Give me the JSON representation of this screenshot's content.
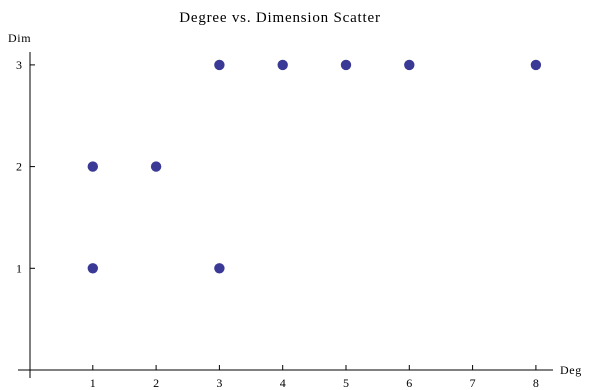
{
  "chart_data": {
    "type": "scatter",
    "title": "Degree vs. Dimension Scatter",
    "xlabel": "Deg",
    "ylabel": "Dim",
    "xlim": [
      0,
      8.1
    ],
    "ylim": [
      0,
      3.0
    ],
    "xticks": [
      1,
      2,
      3,
      4,
      5,
      6,
      7,
      8
    ],
    "yticks": [
      1,
      2,
      3
    ],
    "grid": false,
    "marker_color": "#3a3a96",
    "series": [
      {
        "points": [
          {
            "x": 1,
            "y": 1
          },
          {
            "x": 1,
            "y": 2
          },
          {
            "x": 2,
            "y": 2
          },
          {
            "x": 3,
            "y": 1
          },
          {
            "x": 3,
            "y": 3
          },
          {
            "x": 4,
            "y": 3
          },
          {
            "x": 5,
            "y": 3
          },
          {
            "x": 6,
            "y": 3
          },
          {
            "x": 8,
            "y": 3
          }
        ]
      }
    ]
  }
}
